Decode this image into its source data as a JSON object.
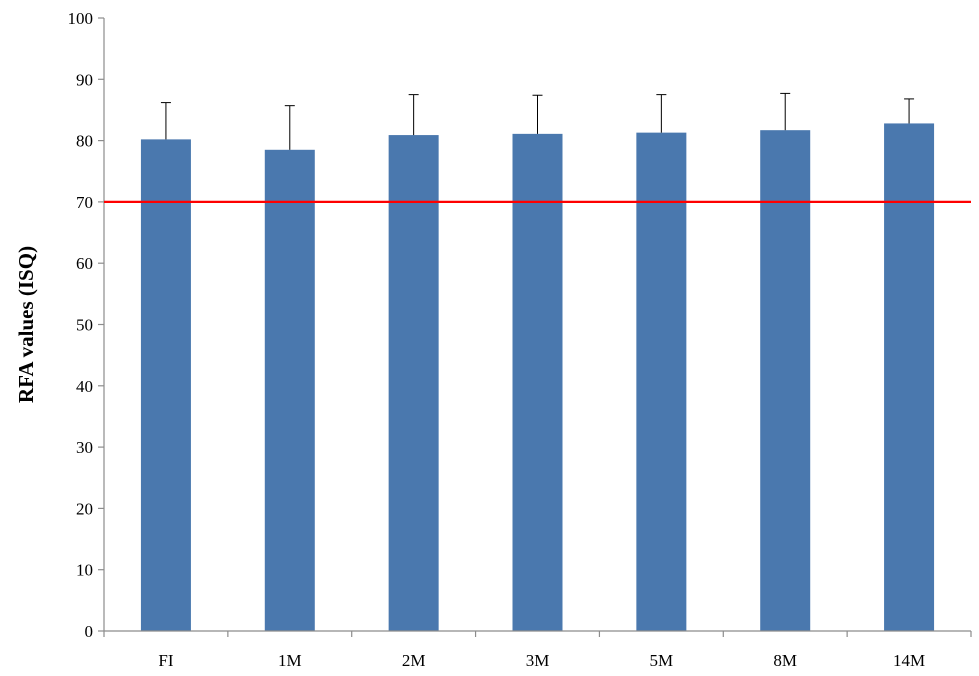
{
  "chart_data": {
    "type": "bar",
    "title": "",
    "xlabel": "",
    "ylabel": "RFA values (ISQ)",
    "ylim": [
      0,
      100
    ],
    "yticks": [
      0,
      10,
      20,
      30,
      40,
      50,
      60,
      70,
      80,
      90,
      100
    ],
    "categories": [
      "FI",
      "1M",
      "2M",
      "3M",
      "5M",
      "8M",
      "14M"
    ],
    "values": [
      80.2,
      78.5,
      80.9,
      81.1,
      81.3,
      81.7,
      82.8
    ],
    "error_upper": [
      6.0,
      7.2,
      6.6,
      6.3,
      6.2,
      6.0,
      4.0
    ],
    "reference_line": {
      "y": 70,
      "color": "#ff0000"
    },
    "bar_color": "#4a78ae",
    "grid": false,
    "legend": "none"
  }
}
